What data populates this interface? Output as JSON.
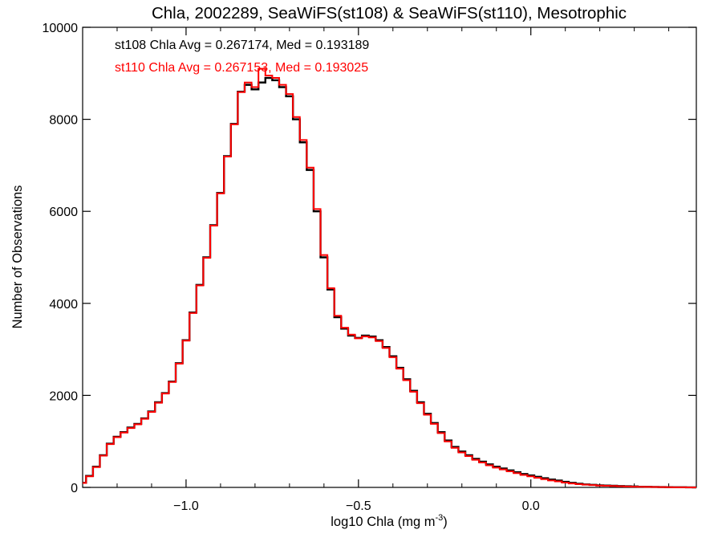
{
  "chart_data": {
    "type": "line",
    "title": "Chla, 2002289, SeaWiFS(st108) & SeaWiFS(st110), Mesotrophic",
    "xlabel_main": "log10 Chla (mg m",
    "xlabel_sup": "-3",
    "xlabel_end": ")",
    "ylabel": "Number of Observations",
    "xlim": [
      -1.3,
      0.48
    ],
    "ylim": [
      0,
      10000
    ],
    "xticks": [
      -1.0,
      -0.5,
      0.0
    ],
    "xtick_labels": [
      "−1.0",
      "−0.5",
      "0.0"
    ],
    "yticks": [
      0,
      2000,
      4000,
      6000,
      8000,
      10000
    ],
    "ytick_labels": [
      "0",
      "2000",
      "4000",
      "6000",
      "8000",
      "10000"
    ],
    "grid": false,
    "legend_position": "top-left",
    "annotations": [
      {
        "text": "st108 Chla Avg = 0.267174, Med = 0.193189",
        "color": "#000000"
      },
      {
        "text": "st110 Chla Avg = 0.267153, Med = 0.193025",
        "color": "#ff0000"
      }
    ],
    "series": [
      {
        "color": "#000000",
        "x": [
          -1.3,
          -1.28,
          -1.26,
          -1.24,
          -1.22,
          -1.2,
          -1.18,
          -1.16,
          -1.14,
          -1.12,
          -1.1,
          -1.08,
          -1.06,
          -1.04,
          -1.02,
          -1.0,
          -0.98,
          -0.96,
          -0.94,
          -0.92,
          -0.9,
          -0.88,
          -0.86,
          -0.84,
          -0.82,
          -0.8,
          -0.78,
          -0.76,
          -0.74,
          -0.72,
          -0.7,
          -0.68,
          -0.66,
          -0.64,
          -0.62,
          -0.6,
          -0.58,
          -0.56,
          -0.54,
          -0.52,
          -0.5,
          -0.48,
          -0.46,
          -0.44,
          -0.42,
          -0.4,
          -0.38,
          -0.36,
          -0.34,
          -0.32,
          -0.3,
          -0.28,
          -0.26,
          -0.24,
          -0.22,
          -0.2,
          -0.18,
          -0.16,
          -0.14,
          -0.12,
          -0.1,
          -0.08,
          -0.06,
          -0.04,
          -0.02,
          0.0,
          0.02,
          0.04,
          0.06,
          0.08,
          0.1,
          0.12,
          0.14,
          0.16,
          0.18,
          0.2,
          0.22,
          0.24,
          0.26,
          0.28,
          0.3,
          0.32,
          0.34,
          0.36,
          0.38,
          0.4,
          0.42,
          0.44,
          0.46,
          0.48
        ],
        "y": [
          100,
          250,
          450,
          700,
          950,
          1100,
          1200,
          1300,
          1380,
          1500,
          1650,
          1850,
          2050,
          2300,
          2700,
          3200,
          3800,
          4400,
          5000,
          5700,
          6400,
          7200,
          7900,
          8600,
          8750,
          8650,
          8800,
          8900,
          8850,
          8700,
          8500,
          8000,
          7500,
          6900,
          6000,
          5000,
          4300,
          3700,
          3450,
          3300,
          3250,
          3300,
          3280,
          3200,
          3050,
          2850,
          2600,
          2350,
          2100,
          1850,
          1600,
          1400,
          1200,
          1020,
          880,
          780,
          700,
          620,
          560,
          500,
          450,
          410,
          370,
          330,
          290,
          260,
          230,
          200,
          170,
          150,
          120,
          100,
          80,
          65,
          55,
          45,
          40,
          35,
          30,
          25,
          20,
          15,
          12,
          10,
          8,
          6,
          4,
          3,
          2,
          0
        ]
      },
      {
        "color": "#ff0000",
        "x": [
          -1.3,
          -1.28,
          -1.26,
          -1.24,
          -1.22,
          -1.2,
          -1.18,
          -1.16,
          -1.14,
          -1.12,
          -1.1,
          -1.08,
          -1.06,
          -1.04,
          -1.02,
          -1.0,
          -0.98,
          -0.96,
          -0.94,
          -0.92,
          -0.9,
          -0.88,
          -0.86,
          -0.84,
          -0.82,
          -0.8,
          -0.78,
          -0.76,
          -0.74,
          -0.72,
          -0.7,
          -0.68,
          -0.66,
          -0.64,
          -0.62,
          -0.6,
          -0.58,
          -0.56,
          -0.54,
          -0.52,
          -0.5,
          -0.48,
          -0.46,
          -0.44,
          -0.42,
          -0.4,
          -0.38,
          -0.36,
          -0.34,
          -0.32,
          -0.3,
          -0.28,
          -0.26,
          -0.24,
          -0.22,
          -0.2,
          -0.18,
          -0.16,
          -0.14,
          -0.12,
          -0.1,
          -0.08,
          -0.06,
          -0.04,
          -0.02,
          0.0,
          0.02,
          0.04,
          0.06,
          0.08,
          0.1,
          0.12,
          0.14,
          0.16,
          0.18,
          0.2,
          0.22,
          0.24,
          0.26,
          0.28,
          0.3,
          0.32,
          0.34,
          0.36,
          0.38,
          0.4,
          0.42,
          0.44,
          0.46,
          0.48
        ],
        "y": [
          95,
          240,
          440,
          690,
          940,
          1090,
          1190,
          1290,
          1370,
          1490,
          1640,
          1840,
          2040,
          2290,
          2690,
          3190,
          3790,
          4390,
          4990,
          5690,
          6390,
          7190,
          7890,
          8590,
          8800,
          8700,
          9100,
          8950,
          8900,
          8750,
          8550,
          8050,
          7550,
          6950,
          6050,
          5050,
          4330,
          3730,
          3470,
          3320,
          3240,
          3280,
          3260,
          3180,
          3030,
          2830,
          2580,
          2330,
          2080,
          1830,
          1580,
          1380,
          1180,
          1000,
          860,
          760,
          680,
          600,
          540,
          480,
          430,
          390,
          350,
          310,
          270,
          240,
          210,
          180,
          150,
          130,
          105,
          85,
          70,
          58,
          50,
          40,
          35,
          30,
          25,
          20,
          16,
          12,
          10,
          8,
          6,
          4,
          3,
          2,
          1,
          0
        ]
      }
    ]
  }
}
